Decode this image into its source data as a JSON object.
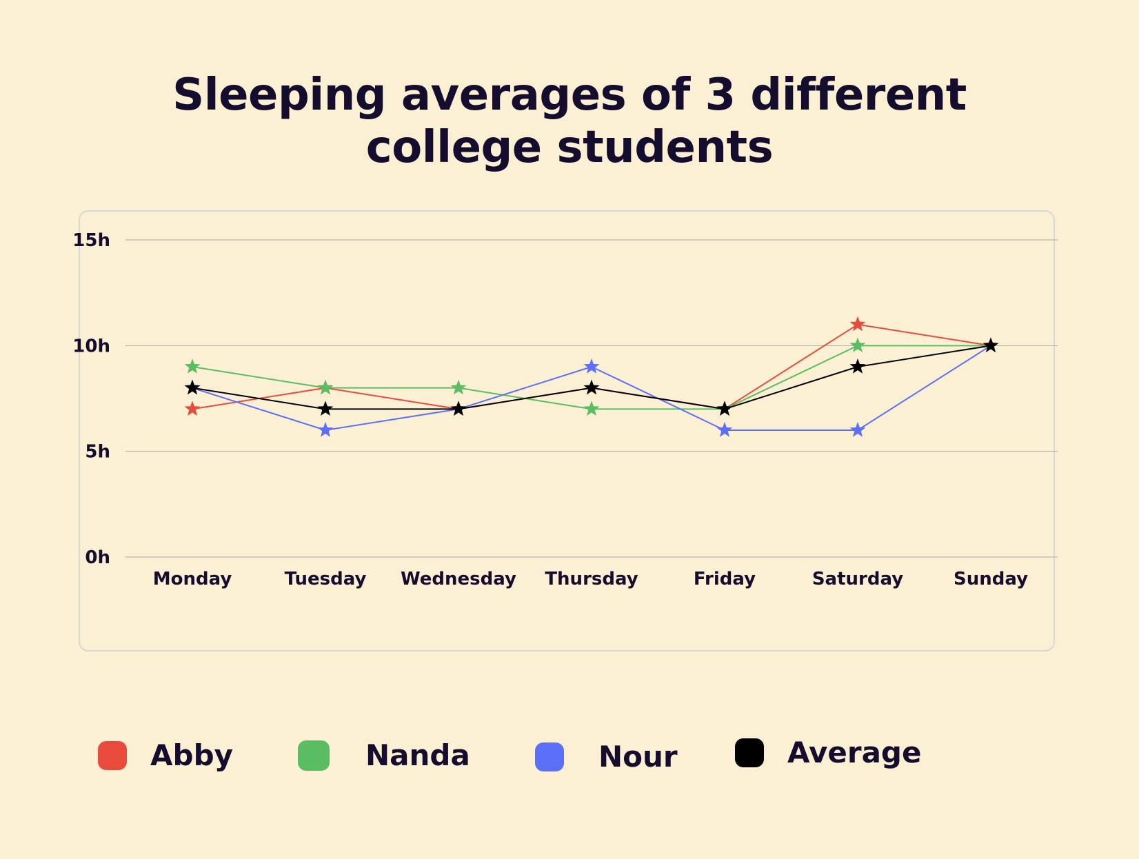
{
  "chart_data": {
    "type": "line",
    "title": "Sleeping averages of 3 different college students",
    "title_lines": [
      "Sleeping averages of 3 different",
      "college students"
    ],
    "xlabel": "",
    "ylabel": "",
    "categories": [
      "Monday",
      "Tuesday",
      "Wednesday",
      "Thursday",
      "Friday",
      "Saturday",
      "Sunday"
    ],
    "yticks": [
      {
        "value": 0,
        "label": "0h"
      },
      {
        "value": 5,
        "label": "5h"
      },
      {
        "value": 10,
        "label": "10h"
      },
      {
        "value": 15,
        "label": "15h"
      }
    ],
    "ylim": [
      0,
      15
    ],
    "grid": true,
    "legend_position": "bottom",
    "marker": "star",
    "series": [
      {
        "name": "Abby",
        "color": "#e84b3c",
        "values": [
          7,
          8,
          7,
          8,
          7,
          11,
          10
        ]
      },
      {
        "name": "Nanda",
        "color": "#5bbd63",
        "values": [
          9,
          8,
          8,
          7,
          7,
          10,
          10
        ]
      },
      {
        "name": "Nour",
        "color": "#5b6ff7",
        "values": [
          8,
          6,
          7,
          9,
          6,
          6,
          10
        ]
      },
      {
        "name": "Average",
        "color": "#000000",
        "values": [
          8,
          7,
          7,
          8,
          7,
          9,
          10
        ]
      }
    ]
  }
}
